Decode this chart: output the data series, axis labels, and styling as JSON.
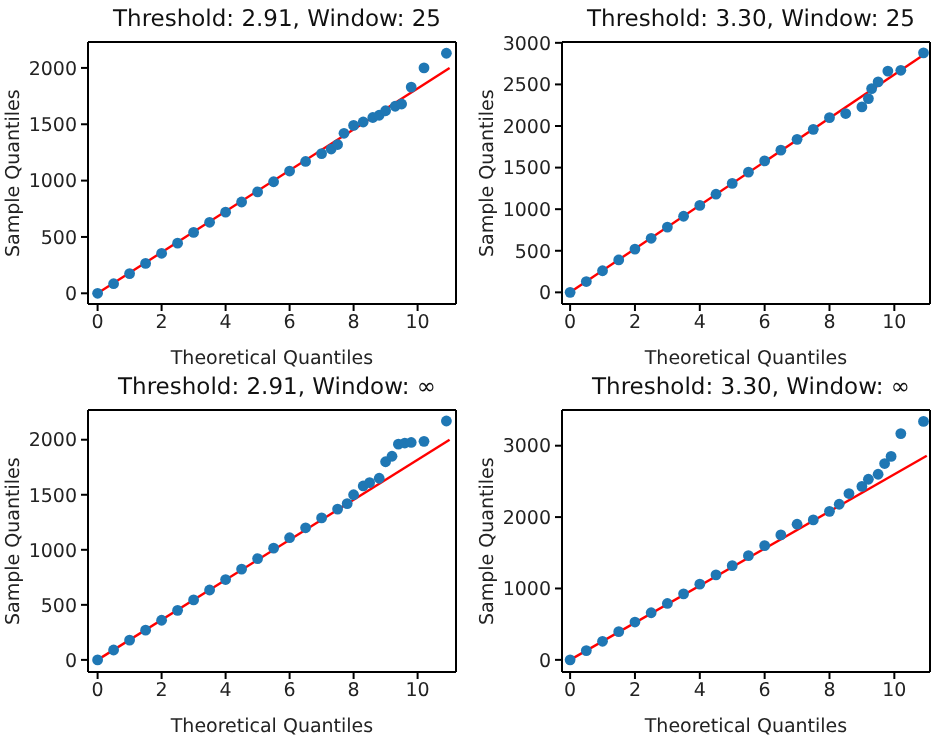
{
  "chart_data": [
    {
      "type": "scatter",
      "title": "Threshold: 2.91, Window: 25",
      "xlabel": "Theoretical Quantiles",
      "ylabel": "Sample Quantiles",
      "xlim": [
        -0.3,
        11.2
      ],
      "ylim": [
        -95,
        2230
      ],
      "xticks": [
        0,
        2,
        4,
        6,
        8,
        10
      ],
      "yticks": [
        0,
        500,
        1000,
        1500,
        2000
      ],
      "series": [
        {
          "marker": "circle",
          "color": "#1f77b4",
          "x": [
            0,
            0.5,
            1,
            1.5,
            2,
            2.5,
            3,
            3.5,
            4,
            4.5,
            5,
            5.5,
            6,
            6.5,
            7,
            7.3,
            7.5,
            7.7,
            8,
            8.3,
            8.6,
            8.8,
            9.0,
            9.3,
            9.5,
            9.8,
            10.2,
            10.9
          ],
          "values": [
            0,
            85,
            175,
            265,
            355,
            445,
            540,
            630,
            720,
            810,
            900,
            990,
            1085,
            1170,
            1240,
            1280,
            1320,
            1420,
            1490,
            1520,
            1560,
            1580,
            1620,
            1660,
            1680,
            1830,
            2000,
            2130
          ]
        },
        {
          "type": "line",
          "color": "#ff0000",
          "x": [
            0,
            11
          ],
          "values": [
            0,
            2000
          ]
        }
      ]
    },
    {
      "type": "scatter",
      "title": "Threshold: 3.30, Window: 25",
      "xlabel": "Theoretical Quantiles",
      "ylabel": "Sample Quantiles",
      "xlim": [
        -0.25,
        11.1
      ],
      "ylim": [
        -140,
        3010
      ],
      "xticks": [
        0,
        2,
        4,
        6,
        8,
        10
      ],
      "yticks": [
        0,
        500,
        1000,
        1500,
        2000,
        2500,
        3000
      ],
      "series": [
        {
          "marker": "circle",
          "color": "#1f77b4",
          "x": [
            0,
            0.5,
            1,
            1.5,
            2,
            2.5,
            3,
            3.5,
            4,
            4.5,
            5,
            5.5,
            6,
            6.5,
            7,
            7.5,
            8,
            8.5,
            9,
            9.2,
            9.3,
            9.5,
            9.8,
            10.2,
            10.9
          ],
          "values": [
            0,
            130,
            260,
            390,
            520,
            650,
            785,
            915,
            1045,
            1180,
            1310,
            1445,
            1580,
            1710,
            1840,
            1960,
            2100,
            2150,
            2230,
            2330,
            2450,
            2530,
            2660,
            2670,
            2880
          ]
        },
        {
          "type": "line",
          "color": "#ff0000",
          "x": [
            0,
            11
          ],
          "values": [
            0,
            2880
          ]
        }
      ]
    },
    {
      "type": "scatter",
      "title": "Threshold: 2.91, Window: ∞",
      "xlabel": "Theoretical Quantiles",
      "ylabel": "Sample Quantiles",
      "xlim": [
        -0.3,
        11.2
      ],
      "ylim": [
        -110,
        2270
      ],
      "xticks": [
        0,
        2,
        4,
        6,
        8,
        10
      ],
      "yticks": [
        0,
        500,
        1000,
        1500,
        2000
      ],
      "series": [
        {
          "marker": "circle",
          "color": "#1f77b4",
          "x": [
            0,
            0.5,
            1,
            1.5,
            2,
            2.5,
            3,
            3.5,
            4,
            4.5,
            5,
            5.5,
            6,
            6.5,
            7,
            7.5,
            7.8,
            8,
            8.3,
            8.5,
            8.8,
            9.0,
            9.2,
            9.4,
            9.6,
            9.8,
            10.2,
            10.9
          ],
          "values": [
            0,
            90,
            180,
            270,
            360,
            450,
            545,
            635,
            730,
            825,
            920,
            1015,
            1110,
            1200,
            1290,
            1370,
            1420,
            1500,
            1580,
            1610,
            1650,
            1800,
            1850,
            1960,
            1970,
            1975,
            1985,
            2170
          ]
        },
        {
          "type": "line",
          "color": "#ff0000",
          "x": [
            0,
            11
          ],
          "values": [
            0,
            2000
          ]
        }
      ]
    },
    {
      "type": "scatter",
      "title": "Threshold: 3.30, Window: ∞",
      "xlabel": "Theoretical Quantiles",
      "ylabel": "Sample Quantiles",
      "xlim": [
        -0.25,
        11.1
      ],
      "ylim": [
        -170,
        3500
      ],
      "xticks": [
        0,
        2,
        4,
        6,
        8,
        10
      ],
      "yticks": [
        0,
        1000,
        2000,
        3000
      ],
      "series": [
        {
          "marker": "circle",
          "color": "#1f77b4",
          "x": [
            0,
            0.5,
            1,
            1.5,
            2,
            2.5,
            3,
            3.5,
            4,
            4.5,
            5,
            5.5,
            6,
            6.5,
            7,
            7.5,
            8,
            8.3,
            8.6,
            9.0,
            9.2,
            9.5,
            9.7,
            9.9,
            10.2,
            10.9
          ],
          "values": [
            0,
            130,
            260,
            395,
            530,
            660,
            790,
            925,
            1060,
            1190,
            1320,
            1460,
            1600,
            1750,
            1900,
            1960,
            2080,
            2180,
            2330,
            2430,
            2530,
            2600,
            2750,
            2850,
            3170,
            3340
          ]
        },
        {
          "type": "line",
          "color": "#ff0000",
          "x": [
            0,
            11
          ],
          "values": [
            0,
            2860
          ]
        }
      ]
    }
  ]
}
